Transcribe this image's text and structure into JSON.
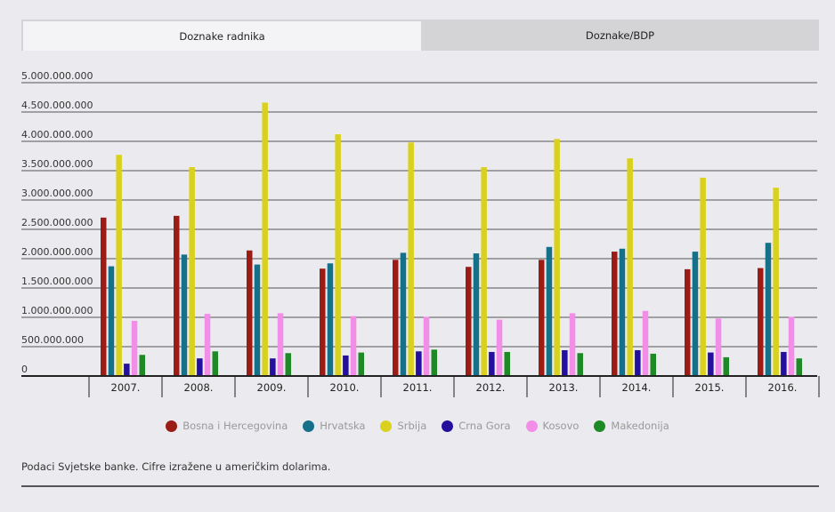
{
  "tabs": [
    {
      "label": "Doznake radnika",
      "active": true
    },
    {
      "label": "Doznake/BDP",
      "active": false
    }
  ],
  "chart_data": {
    "type": "bar",
    "categories": [
      "2007.",
      "2008.",
      "2009.",
      "2010.",
      "2011.",
      "2012.",
      "2013.",
      "2014.",
      "2015.",
      "2016."
    ],
    "ylim": [
      0,
      5000000000
    ],
    "yticks": [
      {
        "value": 0,
        "label": "0"
      },
      {
        "value": 500000000,
        "label": "500.000.000"
      },
      {
        "value": 1000000000,
        "label": "1.000.000.000"
      },
      {
        "value": 1500000000,
        "label": "1.500.000.000"
      },
      {
        "value": 2000000000,
        "label": "2.000.000.000"
      },
      {
        "value": 2500000000,
        "label": "2.500.000.000"
      },
      {
        "value": 3000000000,
        "label": "3.000.000.000"
      },
      {
        "value": 3500000000,
        "label": "3.500.000.000"
      },
      {
        "value": 4000000000,
        "label": "4.000.000.000"
      },
      {
        "value": 4500000000,
        "label": "4.500.000.000"
      },
      {
        "value": 5000000000,
        "label": "5.000.000.000"
      }
    ],
    "grid": true,
    "legend_position": "bottom-center",
    "series": [
      {
        "name": "Bosna i Hercegovina",
        "color": "#9b1c14",
        "values": [
          2700000000,
          2730000000,
          2140000000,
          1830000000,
          1980000000,
          1860000000,
          1980000000,
          2120000000,
          1820000000,
          1840000000
        ]
      },
      {
        "name": "Hrvatska",
        "color": "#15718a",
        "values": [
          1870000000,
          2070000000,
          1900000000,
          1920000000,
          2100000000,
          2090000000,
          2200000000,
          2170000000,
          2120000000,
          2270000000
        ]
      },
      {
        "name": "Srbija",
        "color": "#d9d11e",
        "values": [
          3770000000,
          3560000000,
          4660000000,
          4120000000,
          3980000000,
          3560000000,
          4040000000,
          3710000000,
          3380000000,
          3210000000
        ]
      },
      {
        "name": "Crna Gora",
        "color": "#24109c",
        "values": [
          210000000,
          300000000,
          300000000,
          350000000,
          420000000,
          410000000,
          440000000,
          440000000,
          400000000,
          410000000
        ]
      },
      {
        "name": "Kosovo",
        "color": "#f28ee8",
        "values": [
          940000000,
          1060000000,
          1070000000,
          1020000000,
          1010000000,
          960000000,
          1070000000,
          1110000000,
          980000000,
          1010000000
        ]
      },
      {
        "name": "Makedonija",
        "color": "#1e8a25",
        "values": [
          360000000,
          420000000,
          390000000,
          400000000,
          450000000,
          410000000,
          390000000,
          380000000,
          320000000,
          300000000
        ]
      }
    ]
  },
  "footnote": "Podaci Svjetske banke. Cifre izražene u američkim dolarima."
}
